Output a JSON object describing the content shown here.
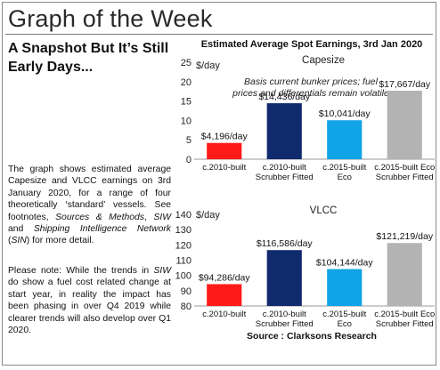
{
  "header": {
    "title": "Graph of the Week"
  },
  "sidebar": {
    "subtitle": "A Snapshot But It’s Still Early Days...",
    "para1": {
      "t1": "The graph shows estimated average Capesize and VLCC earnings on 3rd January 2020, for a range of four theoretically ‘standard’ vessels. See footnotes, ",
      "i1": "Sources & Methods",
      "t2": ", ",
      "i2": "SIW",
      "t3": " and ",
      "i3": "Shipping Intelligence Network",
      "t4": " (",
      "i4": "SIN",
      "t5": ") for more detail."
    },
    "para2": {
      "t1": "Please note: While the trends in ",
      "i1": "SIW",
      "t2": " do show a fuel cost related change at start year, in reality the impact has been phasing in over Q4 2019 while clearer trends will also develop over Q1 2020."
    }
  },
  "figure": {
    "title": "Estimated Average Spot Earnings, 3rd Jan 2020",
    "source": "Source : Clarksons Research"
  },
  "chart_data": [
    {
      "type": "bar",
      "title": "Capesize",
      "ylabel": "$/day",
      "ylim": [
        0,
        25
      ],
      "yticks": [
        0,
        5,
        10,
        15,
        20,
        25
      ],
      "grid": false,
      "annotation": [
        "Basis current bunker prices; fuel",
        "prices and differentials remain volatile"
      ],
      "categories": [
        [
          "c.2010-built"
        ],
        [
          "c.2010-built",
          "Scrubber Fitted"
        ],
        [
          "c.2015-built",
          "Eco"
        ],
        [
          "c.2015-built Eco",
          "Scrubber Fitted"
        ]
      ],
      "values": [
        4.196,
        14.436,
        10.041,
        17.667
      ],
      "data_labels": [
        "$4,196/day",
        "$14,436/day",
        "$10,041/day",
        "$17,667/day"
      ],
      "colors": [
        "#ff1a1a",
        "#102a6e",
        "#10a3e6",
        "#b3b3b3"
      ]
    },
    {
      "type": "bar",
      "title": "VLCC",
      "ylabel": "$/day",
      "ylim": [
        80,
        140
      ],
      "yticks": [
        80,
        90,
        100,
        110,
        120,
        130,
        140
      ],
      "grid": false,
      "categories": [
        [
          "c.2010-built"
        ],
        [
          "c.2010-built",
          "Scrubber Fitted"
        ],
        [
          "c.2015-built",
          "Eco"
        ],
        [
          "c.2015-built Eco",
          "Scrubber Fitted"
        ]
      ],
      "values": [
        94.286,
        116.586,
        104.144,
        121.219
      ],
      "data_labels": [
        "$94,286/day",
        "$116,586/day",
        "$104,144/day",
        "$121,219/day"
      ],
      "colors": [
        "#ff1a1a",
        "#102a6e",
        "#10a3e6",
        "#b3b3b3"
      ]
    }
  ]
}
